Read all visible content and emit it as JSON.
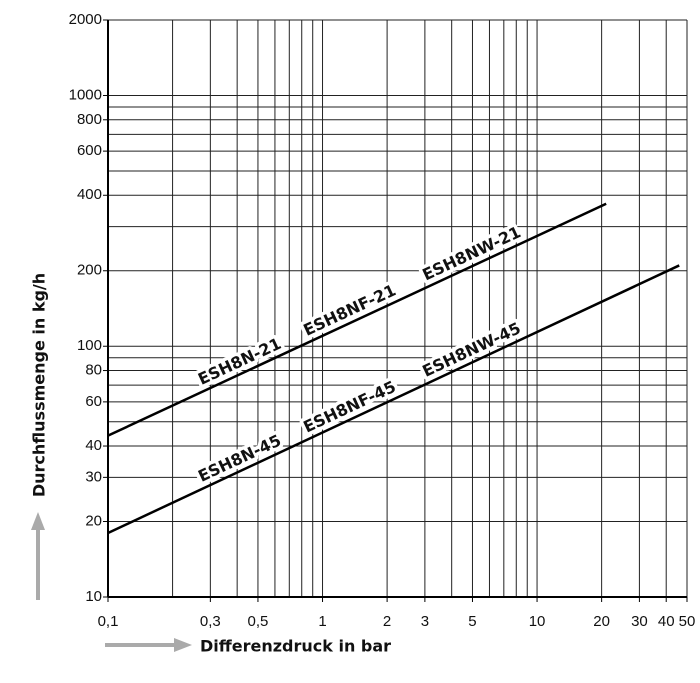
{
  "chart_data": {
    "type": "line",
    "xlabel": "Differenzdruck in bar",
    "ylabel": "Durchflussmenge in kg/h",
    "xscale": "log",
    "yscale": "log",
    "grid": true,
    "xlim": [
      0.1,
      50
    ],
    "ylim": [
      10,
      2000
    ],
    "xticks": [
      {
        "value": 0.1,
        "label": "0,1"
      },
      {
        "value": 0.3,
        "label": "0,3"
      },
      {
        "value": 0.5,
        "label": "0,5"
      },
      1,
      2,
      3,
      5,
      10,
      20,
      30,
      40,
      50
    ],
    "yticks": [
      10,
      20,
      30,
      40,
      60,
      80,
      100,
      200,
      400,
      600,
      800,
      1000,
      2000
    ],
    "xgrid": [
      0.1,
      0.2,
      0.3,
      0.4,
      0.5,
      0.6,
      0.7,
      0.8,
      0.9,
      1,
      2,
      3,
      4,
      5,
      6,
      7,
      8,
      9,
      10,
      20,
      30,
      40,
      50
    ],
    "ygrid": [
      10,
      20,
      30,
      40,
      50,
      60,
      70,
      80,
      90,
      100,
      200,
      300,
      400,
      500,
      600,
      700,
      800,
      900,
      1000,
      2000
    ],
    "series": [
      {
        "color": "#000000",
        "labels": [
          "ESH8N-21",
          "ESH8NF-21",
          "ESH8NW-21"
        ],
        "x": [
          0.1,
          21
        ],
        "values": [
          44,
          370
        ]
      },
      {
        "color": "#000000",
        "labels": [
          "ESH8N-45",
          "ESH8NF-45",
          "ESH8NW-45"
        ],
        "x": [
          0.1,
          46
        ],
        "values": [
          18,
          210
        ]
      }
    ]
  }
}
